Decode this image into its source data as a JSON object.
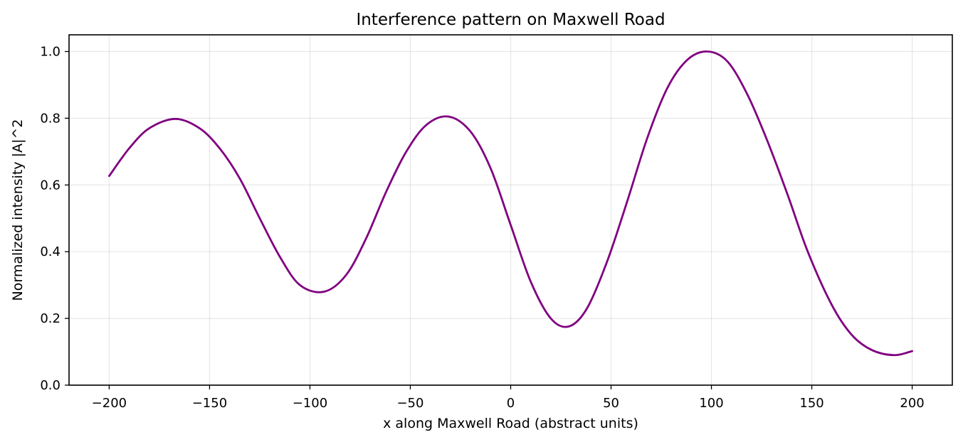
{
  "chart_data": {
    "type": "line",
    "title": "Interference pattern on Maxwell Road",
    "xlabel": "x along Maxwell Road (abstract units)",
    "ylabel": "Normalized intensity |A|^2",
    "xlim": [
      -220,
      220
    ],
    "ylim": [
      0.0,
      1.05
    ],
    "grid": true,
    "xticks": [
      {
        "value": -200,
        "label": "−200"
      },
      {
        "value": -150,
        "label": "−150"
      },
      {
        "value": -100,
        "label": "−100"
      },
      {
        "value": -50,
        "label": "−50"
      },
      {
        "value": 0,
        "label": "0"
      },
      {
        "value": 50,
        "label": "50"
      },
      {
        "value": 100,
        "label": "100"
      },
      {
        "value": 150,
        "label": "150"
      },
      {
        "value": 200,
        "label": "200"
      }
    ],
    "yticks": [
      {
        "value": 0.0,
        "label": "0.0"
      },
      {
        "value": 0.2,
        "label": "0.2"
      },
      {
        "value": 0.4,
        "label": "0.4"
      },
      {
        "value": 0.6,
        "label": "0.6"
      },
      {
        "value": 0.8,
        "label": "0.8"
      },
      {
        "value": 1.0,
        "label": "1.0"
      }
    ],
    "series": [
      {
        "color": "#800080",
        "x": [
          -200,
          -190,
          -180,
          -167,
          -155,
          -145,
          -135,
          -125,
          -115,
          -105,
          -93,
          -82,
          -72,
          -62,
          -52,
          -42,
          -31,
          -20,
          -10,
          0,
          10,
          20,
          29,
          38,
          48,
          58,
          68,
          78,
          88,
          98,
          108,
          118,
          128,
          138,
          148,
          160,
          170,
          180,
          191,
          200
        ],
        "y": [
          0.627,
          0.71,
          0.77,
          0.798,
          0.77,
          0.71,
          0.62,
          0.5,
          0.385,
          0.3,
          0.28,
          0.33,
          0.44,
          0.58,
          0.7,
          0.78,
          0.805,
          0.76,
          0.65,
          0.48,
          0.31,
          0.2,
          0.176,
          0.23,
          0.37,
          0.55,
          0.74,
          0.89,
          0.975,
          1.0,
          0.97,
          0.87,
          0.73,
          0.57,
          0.4,
          0.24,
          0.15,
          0.105,
          0.09,
          0.102
        ]
      }
    ]
  }
}
